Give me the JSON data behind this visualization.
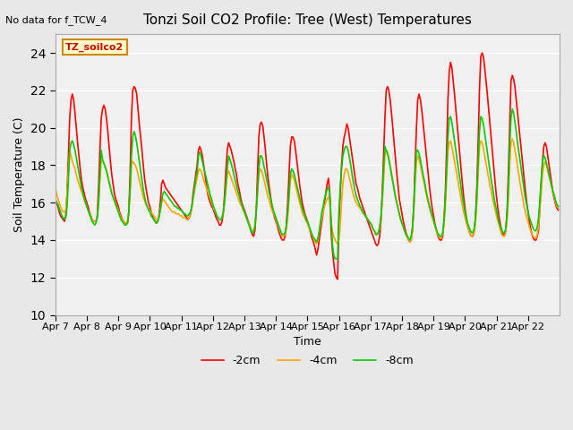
{
  "title": "Tonzi Soil CO2 Profile: Tree (West) Temperatures",
  "note": "No data for f_TCW_4",
  "xlabel": "Time",
  "ylabel": "Soil Temperature (C)",
  "legend_label": "TZ_soilco2",
  "ylim": [
    10,
    25
  ],
  "yticks": [
    10,
    12,
    14,
    16,
    18,
    20,
    22,
    24
  ],
  "series_labels": [
    "-2cm",
    "-4cm",
    "-8cm"
  ],
  "series_colors": [
    "#ff0000",
    "#ffa500",
    "#00cc00"
  ],
  "line_width": 1.2,
  "xtick_labels": [
    "Apr 7",
    "Apr 8",
    "Apr 9",
    "Apr 10",
    "Apr 11",
    "Apr 12",
    "Apr 13",
    "Apr 14",
    "Apr 15",
    "Apr 16",
    "Apr 17",
    "Apr 18",
    "Apr 19",
    "Apr 20",
    "Apr 21",
    "Apr 22"
  ],
  "background_color": "#e8e8e8",
  "plot_bg_color": "#f0f0f0",
  "grid_color": "#ffffff",
  "n_points_per_day": 24,
  "data_2cm": [
    16.2,
    16.0,
    15.8,
    15.5,
    15.3,
    15.2,
    15.1,
    15.0,
    15.3,
    16.5,
    18.5,
    20.5,
    21.5,
    21.8,
    21.5,
    20.8,
    20.0,
    19.2,
    18.5,
    17.8,
    17.2,
    16.8,
    16.5,
    16.2,
    16.0,
    15.8,
    15.5,
    15.3,
    15.1,
    15.0,
    15.0,
    15.0,
    15.3,
    16.8,
    18.8,
    20.5,
    21.0,
    21.2,
    21.0,
    20.5,
    19.8,
    19.0,
    18.2,
    17.5,
    17.0,
    16.5,
    16.2,
    16.0,
    15.8,
    15.5,
    15.3,
    15.1,
    15.0,
    14.9,
    14.9,
    14.9,
    15.5,
    17.5,
    20.5,
    22.0,
    22.2,
    22.1,
    21.8,
    21.0,
    20.2,
    19.5,
    18.8,
    18.0,
    17.3,
    16.8,
    16.4,
    16.0,
    15.8,
    15.5,
    15.3,
    15.1,
    15.0,
    14.9,
    15.0,
    15.3,
    16.0,
    17.0,
    17.2,
    17.0,
    16.8,
    16.7,
    16.6,
    16.5,
    16.4,
    16.3,
    16.2,
    16.1,
    16.0,
    15.9,
    15.8,
    15.7,
    15.6,
    15.5,
    15.4,
    15.3,
    15.2,
    15.1,
    15.2,
    15.4,
    15.8,
    16.5,
    17.0,
    17.5,
    18.0,
    18.8,
    19.0,
    18.8,
    18.5,
    18.0,
    17.5,
    17.0,
    16.5,
    16.2,
    16.0,
    15.8,
    15.7,
    15.5,
    15.3,
    15.1,
    15.0,
    14.8,
    14.8,
    15.0,
    15.5,
    16.5,
    17.8,
    18.8,
    19.2,
    19.0,
    18.8,
    18.5,
    18.2,
    17.8,
    17.5,
    17.0,
    16.7,
    16.3,
    16.0,
    15.8,
    15.6,
    15.4,
    15.2,
    15.0,
    14.8,
    14.5,
    14.3,
    14.2,
    14.5,
    15.5,
    17.5,
    19.5,
    20.2,
    20.3,
    20.1,
    19.5,
    18.8,
    18.0,
    17.3,
    16.8,
    16.3,
    15.8,
    15.5,
    15.2,
    15.0,
    14.8,
    14.5,
    14.3,
    14.1,
    14.0,
    14.0,
    14.2,
    14.8,
    16.0,
    17.5,
    19.0,
    19.5,
    19.5,
    19.3,
    18.8,
    18.2,
    17.6,
    17.0,
    16.5,
    16.0,
    15.7,
    15.4,
    15.2,
    15.0,
    14.8,
    14.5,
    14.2,
    14.0,
    13.8,
    13.5,
    13.2,
    13.5,
    14.0,
    14.5,
    15.0,
    15.5,
    16.0,
    16.5,
    17.0,
    17.3,
    16.5,
    14.5,
    13.5,
    12.8,
    12.2,
    12.0,
    11.9,
    15.0,
    16.5,
    18.0,
    19.0,
    19.5,
    19.8,
    20.2,
    20.0,
    19.5,
    19.0,
    18.5,
    18.0,
    17.5,
    17.0,
    16.8,
    16.5,
    16.2,
    16.0,
    15.8,
    15.6,
    15.4,
    15.2,
    15.0,
    14.8,
    14.6,
    14.4,
    14.2,
    14.0,
    13.8,
    13.7,
    13.8,
    14.2,
    15.0,
    16.5,
    18.5,
    20.5,
    22.0,
    22.2,
    22.0,
    21.5,
    20.8,
    20.0,
    19.2,
    18.4,
    17.6,
    16.9,
    16.2,
    15.8,
    15.4,
    15.0,
    14.7,
    14.4,
    14.2,
    14.0,
    13.9,
    14.0,
    14.5,
    15.8,
    18.0,
    20.0,
    21.5,
    21.8,
    21.5,
    21.0,
    20.3,
    19.6,
    18.9,
    18.2,
    17.5,
    16.8,
    16.2,
    15.7,
    15.3,
    14.9,
    14.6,
    14.3,
    14.1,
    14.0,
    14.0,
    14.2,
    15.0,
    16.5,
    18.8,
    21.5,
    23.0,
    23.5,
    23.2,
    22.5,
    21.8,
    21.0,
    20.2,
    19.4,
    18.6,
    17.8,
    17.0,
    16.3,
    15.7,
    15.2,
    14.8,
    14.5,
    14.3,
    14.2,
    14.2,
    14.5,
    15.2,
    16.8,
    19.2,
    22.0,
    23.8,
    24.0,
    23.8,
    23.2,
    22.5,
    21.8,
    21.0,
    20.2,
    19.4,
    18.6,
    17.8,
    17.0,
    16.3,
    15.7,
    15.2,
    14.8,
    14.5,
    14.3,
    14.3,
    14.5,
    15.5,
    17.5,
    20.0,
    22.5,
    22.8,
    22.6,
    22.2,
    21.5,
    20.8,
    20.1,
    19.4,
    18.7,
    18.0,
    17.3,
    16.6,
    16.0,
    15.5,
    15.0,
    14.6,
    14.3,
    14.1,
    14.0,
    14.0,
    14.2,
    14.5,
    15.8,
    17.0,
    18.2,
    19.0,
    19.2,
    19.0,
    18.5,
    18.0,
    17.5,
    17.0,
    16.5,
    16.2,
    15.9,
    15.7,
    15.6
  ],
  "data_4cm": [
    16.8,
    16.5,
    16.2,
    16.0,
    15.8,
    15.6,
    15.5,
    15.5,
    15.6,
    16.5,
    17.8,
    18.8,
    18.5,
    18.2,
    18.0,
    17.8,
    17.5,
    17.2,
    17.0,
    16.8,
    16.6,
    16.4,
    16.2,
    16.0,
    15.8,
    15.6,
    15.4,
    15.3,
    15.1,
    15.0,
    15.0,
    15.0,
    15.2,
    16.0,
    17.2,
    18.2,
    18.3,
    18.1,
    17.9,
    17.7,
    17.4,
    17.1,
    16.8,
    16.5,
    16.3,
    16.1,
    15.9,
    15.8,
    15.6,
    15.4,
    15.2,
    15.1,
    15.0,
    14.9,
    14.9,
    15.0,
    15.5,
    16.5,
    18.0,
    18.2,
    18.1,
    18.0,
    17.8,
    17.5,
    17.2,
    16.9,
    16.6,
    16.3,
    16.1,
    15.9,
    15.8,
    15.7,
    15.6,
    15.5,
    15.4,
    15.3,
    15.2,
    15.1,
    15.1,
    15.3,
    15.6,
    16.0,
    16.2,
    16.1,
    16.0,
    15.9,
    15.8,
    15.7,
    15.6,
    15.5,
    15.5,
    15.5,
    15.4,
    15.4,
    15.4,
    15.3,
    15.3,
    15.2,
    15.2,
    15.2,
    15.1,
    15.1,
    15.2,
    15.4,
    15.7,
    16.2,
    16.6,
    17.0,
    17.3,
    17.7,
    17.8,
    17.7,
    17.5,
    17.2,
    17.0,
    16.8,
    16.6,
    16.4,
    16.2,
    16.0,
    15.8,
    15.6,
    15.5,
    15.3,
    15.2,
    15.1,
    15.1,
    15.2,
    15.5,
    16.0,
    16.8,
    17.5,
    17.7,
    17.5,
    17.3,
    17.1,
    16.9,
    16.7,
    16.5,
    16.3,
    16.1,
    15.9,
    15.8,
    15.6,
    15.5,
    15.3,
    15.1,
    15.0,
    14.8,
    14.6,
    14.5,
    14.5,
    14.8,
    15.5,
    16.5,
    17.5,
    17.8,
    17.7,
    17.5,
    17.2,
    16.9,
    16.6,
    16.3,
    16.1,
    15.8,
    15.6,
    15.4,
    15.3,
    15.1,
    14.9,
    14.7,
    14.5,
    14.3,
    14.2,
    14.2,
    14.3,
    14.6,
    15.2,
    16.2,
    17.2,
    17.5,
    17.4,
    17.2,
    16.9,
    16.6,
    16.3,
    16.0,
    15.8,
    15.5,
    15.3,
    15.2,
    15.0,
    14.9,
    14.7,
    14.5,
    14.3,
    14.2,
    14.0,
    13.9,
    13.8,
    14.0,
    14.4,
    14.8,
    15.2,
    15.5,
    15.8,
    16.0,
    16.2,
    16.3,
    16.0,
    15.0,
    14.5,
    14.2,
    14.0,
    13.9,
    13.8,
    14.0,
    14.8,
    16.0,
    17.0,
    17.5,
    17.8,
    17.8,
    17.6,
    17.3,
    17.0,
    16.7,
    16.4,
    16.2,
    16.0,
    15.9,
    15.8,
    15.7,
    15.6,
    15.5,
    15.4,
    15.3,
    15.2,
    15.1,
    15.0,
    14.9,
    14.8,
    14.6,
    14.5,
    14.4,
    14.3,
    14.4,
    14.6,
    15.1,
    16.0,
    17.2,
    18.5,
    18.8,
    18.7,
    18.4,
    18.0,
    17.6,
    17.2,
    16.8,
    16.4,
    16.0,
    15.7,
    15.4,
    15.1,
    14.9,
    14.7,
    14.5,
    14.3,
    14.1,
    14.0,
    13.9,
    14.0,
    14.5,
    15.5,
    17.0,
    18.2,
    18.5,
    18.3,
    18.0,
    17.7,
    17.3,
    17.0,
    16.6,
    16.3,
    16.0,
    15.7,
    15.5,
    15.2,
    15.0,
    14.8,
    14.5,
    14.3,
    14.2,
    14.1,
    14.1,
    14.3,
    14.8,
    15.8,
    17.2,
    18.8,
    19.2,
    19.3,
    19.0,
    18.6,
    18.2,
    17.8,
    17.4,
    17.0,
    16.6,
    16.2,
    15.8,
    15.5,
    15.2,
    14.9,
    14.7,
    14.5,
    14.3,
    14.2,
    14.2,
    14.4,
    14.9,
    16.0,
    17.5,
    19.0,
    19.3,
    19.2,
    18.9,
    18.5,
    18.1,
    17.7,
    17.3,
    16.9,
    16.6,
    16.2,
    15.9,
    15.6,
    15.3,
    15.0,
    14.8,
    14.5,
    14.3,
    14.2,
    14.2,
    14.4,
    15.0,
    16.2,
    18.0,
    19.2,
    19.4,
    19.2,
    18.8,
    18.4,
    17.9,
    17.5,
    17.0,
    16.6,
    16.2,
    15.8,
    15.5,
    15.2,
    15.0,
    14.7,
    14.5,
    14.3,
    14.2,
    14.1,
    14.1,
    14.3,
    14.7,
    15.6,
    16.5,
    17.5,
    18.0,
    18.2,
    18.0,
    17.7,
    17.4,
    17.1,
    16.8,
    16.5,
    16.3,
    16.0,
    15.8,
    15.7
  ],
  "data_8cm": [
    16.1,
    16.0,
    15.9,
    15.7,
    15.5,
    15.3,
    15.2,
    15.1,
    15.2,
    15.8,
    17.2,
    18.8,
    19.2,
    19.3,
    19.1,
    18.8,
    18.4,
    18.0,
    17.6,
    17.2,
    16.8,
    16.5,
    16.2,
    16.0,
    15.8,
    15.6,
    15.4,
    15.2,
    15.0,
    14.9,
    14.8,
    14.9,
    15.2,
    16.0,
    17.5,
    18.8,
    18.3,
    18.1,
    17.9,
    17.7,
    17.4,
    17.1,
    16.8,
    16.5,
    16.3,
    16.1,
    15.9,
    15.7,
    15.5,
    15.3,
    15.1,
    15.0,
    14.9,
    14.8,
    14.8,
    14.9,
    15.5,
    16.8,
    18.5,
    19.5,
    19.8,
    19.6,
    19.2,
    18.7,
    18.2,
    17.7,
    17.2,
    16.7,
    16.3,
    16.0,
    15.8,
    15.6,
    15.5,
    15.3,
    15.2,
    15.1,
    15.0,
    14.9,
    15.0,
    15.2,
    15.6,
    16.1,
    16.5,
    16.6,
    16.5,
    16.4,
    16.3,
    16.2,
    16.1,
    16.0,
    15.9,
    15.8,
    15.8,
    15.7,
    15.7,
    15.6,
    15.6,
    15.5,
    15.4,
    15.4,
    15.3,
    15.3,
    15.4,
    15.5,
    15.8,
    16.3,
    16.8,
    17.3,
    17.6,
    18.5,
    18.7,
    18.5,
    18.2,
    17.9,
    17.6,
    17.3,
    17.0,
    16.7,
    16.4,
    16.2,
    15.9,
    15.7,
    15.5,
    15.3,
    15.2,
    15.1,
    15.1,
    15.2,
    15.5,
    16.1,
    17.0,
    17.8,
    18.5,
    18.3,
    18.1,
    17.8,
    17.5,
    17.2,
    16.9,
    16.6,
    16.4,
    16.1,
    15.9,
    15.7,
    15.5,
    15.3,
    15.1,
    14.9,
    14.7,
    14.5,
    14.4,
    14.4,
    14.7,
    15.5,
    16.6,
    17.8,
    18.5,
    18.5,
    18.3,
    17.9,
    17.6,
    17.2,
    16.9,
    16.5,
    16.2,
    15.9,
    15.6,
    15.4,
    15.2,
    15.0,
    14.8,
    14.6,
    14.4,
    14.3,
    14.3,
    14.4,
    14.8,
    15.5,
    16.5,
    17.5,
    17.8,
    17.7,
    17.5,
    17.2,
    16.9,
    16.6,
    16.3,
    16.0,
    15.7,
    15.5,
    15.3,
    15.1,
    15.0,
    14.8,
    14.6,
    14.4,
    14.2,
    14.1,
    14.0,
    13.9,
    14.1,
    14.5,
    15.0,
    15.5,
    15.8,
    16.2,
    16.5,
    16.7,
    16.8,
    16.5,
    15.2,
    13.8,
    13.2,
    13.0,
    13.0,
    13.0,
    15.5,
    16.8,
    17.8,
    18.5,
    18.8,
    19.0,
    19.0,
    18.8,
    18.4,
    18.0,
    17.5,
    17.1,
    16.7,
    16.4,
    16.2,
    16.0,
    15.8,
    15.7,
    15.5,
    15.4,
    15.3,
    15.2,
    15.1,
    15.0,
    14.9,
    14.8,
    14.6,
    14.5,
    14.3,
    14.3,
    14.4,
    14.7,
    15.3,
    16.3,
    17.8,
    19.0,
    18.8,
    18.6,
    18.3,
    17.9,
    17.5,
    17.1,
    16.7,
    16.3,
    16.0,
    15.7,
    15.4,
    15.1,
    14.9,
    14.7,
    14.5,
    14.3,
    14.2,
    14.1,
    14.0,
    14.2,
    14.7,
    15.8,
    17.5,
    18.8,
    18.8,
    18.6,
    18.3,
    17.9,
    17.5,
    17.2,
    16.8,
    16.4,
    16.1,
    15.8,
    15.5,
    15.3,
    15.1,
    14.8,
    14.6,
    14.4,
    14.3,
    14.2,
    14.2,
    14.4,
    15.0,
    16.2,
    17.8,
    19.5,
    20.5,
    20.6,
    20.3,
    19.8,
    19.3,
    18.8,
    18.3,
    17.8,
    17.3,
    16.8,
    16.3,
    15.9,
    15.5,
    15.2,
    14.9,
    14.7,
    14.5,
    14.4,
    14.4,
    14.6,
    15.2,
    16.4,
    18.2,
    19.8,
    20.6,
    20.5,
    20.2,
    19.7,
    19.2,
    18.7,
    18.2,
    17.7,
    17.2,
    16.8,
    16.3,
    15.9,
    15.6,
    15.2,
    14.9,
    14.7,
    14.5,
    14.4,
    14.4,
    14.6,
    15.3,
    16.8,
    19.0,
    20.5,
    21.0,
    20.8,
    20.3,
    19.8,
    19.2,
    18.7,
    18.2,
    17.7,
    17.2,
    16.7,
    16.2,
    15.9,
    15.5,
    15.2,
    15.0,
    14.8,
    14.6,
    14.5,
    14.5,
    14.7,
    15.2,
    16.1,
    17.2,
    18.2,
    18.5,
    18.4,
    18.1,
    17.8,
    17.5,
    17.2,
    16.9,
    16.6,
    16.4,
    16.1,
    15.9,
    15.8
  ]
}
